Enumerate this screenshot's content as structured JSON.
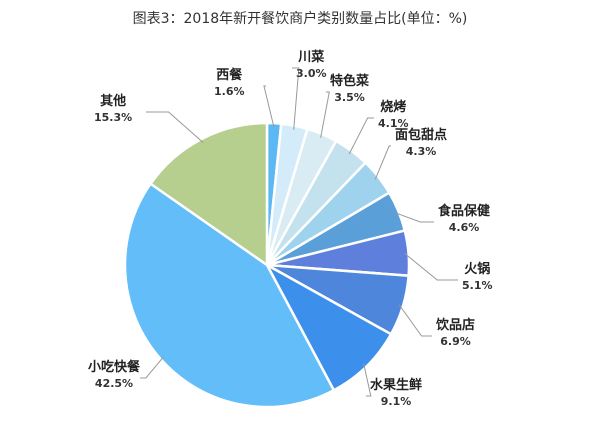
{
  "chart_data": {
    "type": "pie",
    "title": "图表3：2018年新开餐饮商户类别数量占比(单位：%)",
    "start": "top",
    "direction": "clockwise",
    "legend": "none",
    "slices": [
      {
        "label": "西餐",
        "value": 1.6,
        "display": "1.6%",
        "color": "#5bb8f5"
      },
      {
        "label": "川菜",
        "value": 3.0,
        "display": "3.0%",
        "color": "#d4ecfa"
      },
      {
        "label": "特色菜",
        "value": 3.5,
        "display": "3.5%",
        "color": "#d9ebf3"
      },
      {
        "label": "烧烤",
        "value": 4.1,
        "display": "4.1%",
        "color": "#c4e2ee"
      },
      {
        "label": "面包甜点",
        "value": 4.3,
        "display": "4.3%",
        "color": "#9fd2ec"
      },
      {
        "label": "食品保健",
        "value": 4.6,
        "display": "4.6%",
        "color": "#5a9fd8"
      },
      {
        "label": "火锅",
        "value": 5.1,
        "display": "5.1%",
        "color": "#5e7fdc"
      },
      {
        "label": "饮品店",
        "value": 6.9,
        "display": "6.9%",
        "color": "#4e86dc"
      },
      {
        "label": "水果生鲜",
        "value": 9.1,
        "display": "9.1%",
        "color": "#3d8fec"
      },
      {
        "label": "小吃快餐",
        "value": 42.5,
        "display": "42.5%",
        "color": "#63bdf9"
      },
      {
        "label": "其他",
        "value": 15.3,
        "display": "15.3%",
        "color": "#b6cf8f"
      }
    ]
  }
}
